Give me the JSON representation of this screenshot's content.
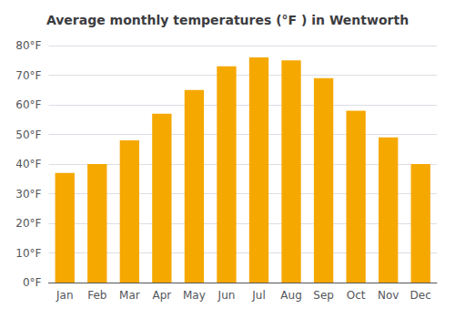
{
  "chart_data": {
    "type": "bar",
    "title": "Average monthly temperatures (°F ) in Wentworth",
    "categories": [
      "Jan",
      "Feb",
      "Mar",
      "Apr",
      "May",
      "Jun",
      "Jul",
      "Aug",
      "Sep",
      "Oct",
      "Nov",
      "Dec"
    ],
    "values": [
      37,
      40,
      48,
      57,
      65,
      73,
      76,
      75,
      69,
      58,
      49,
      40
    ],
    "color": "#F5A800",
    "ylim": [
      0,
      80
    ],
    "yticks": [
      {
        "value": 0,
        "label": "0°F"
      },
      {
        "value": 10,
        "label": "10°F"
      },
      {
        "value": 20,
        "label": "20°F"
      },
      {
        "value": 30,
        "label": "30°F"
      },
      {
        "value": 40,
        "label": "40°F"
      },
      {
        "value": 50,
        "label": "50°F"
      },
      {
        "value": 60,
        "label": "60°F"
      },
      {
        "value": 70,
        "label": "70°F"
      },
      {
        "value": 80,
        "label": "80°F"
      }
    ],
    "grid": true
  }
}
